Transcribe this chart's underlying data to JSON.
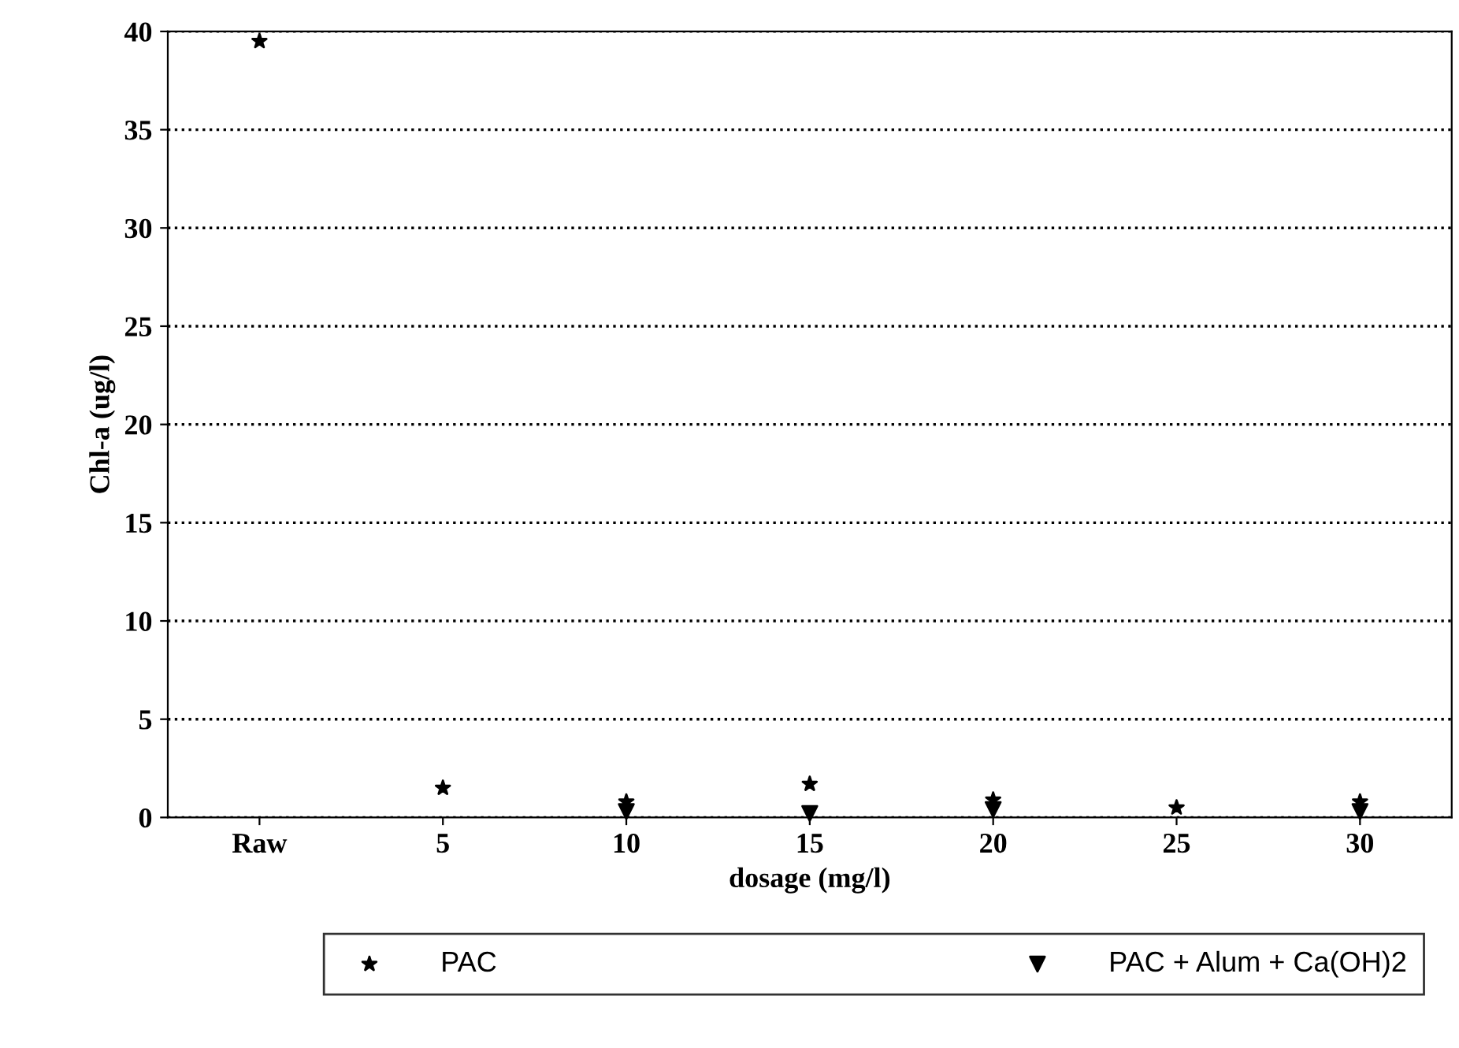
{
  "chart_data": {
    "type": "scatter",
    "xlabel": "dosage (mg/l)",
    "ylabel": "Chl-a (ug/l)",
    "categories": [
      "Raw",
      "5",
      "10",
      "15",
      "20",
      "25",
      "30"
    ],
    "series": [
      {
        "name": "PAC",
        "color": "#000000",
        "marker": "star",
        "values": [
          39.5,
          1.5,
          0.8,
          1.7,
          0.9,
          0.5,
          0.8
        ]
      },
      {
        "name": "PAC + Alum + Ca(OH)2",
        "color": "#000000",
        "marker": "triangle",
        "values": [
          null,
          null,
          0.3,
          0.2,
          0.4,
          null,
          0.3
        ]
      }
    ],
    "ylim": [
      0,
      40
    ],
    "yticks": [
      0,
      5,
      10,
      15,
      20,
      25,
      30,
      35,
      40
    ],
    "grid": "y",
    "legend": "bottom"
  }
}
